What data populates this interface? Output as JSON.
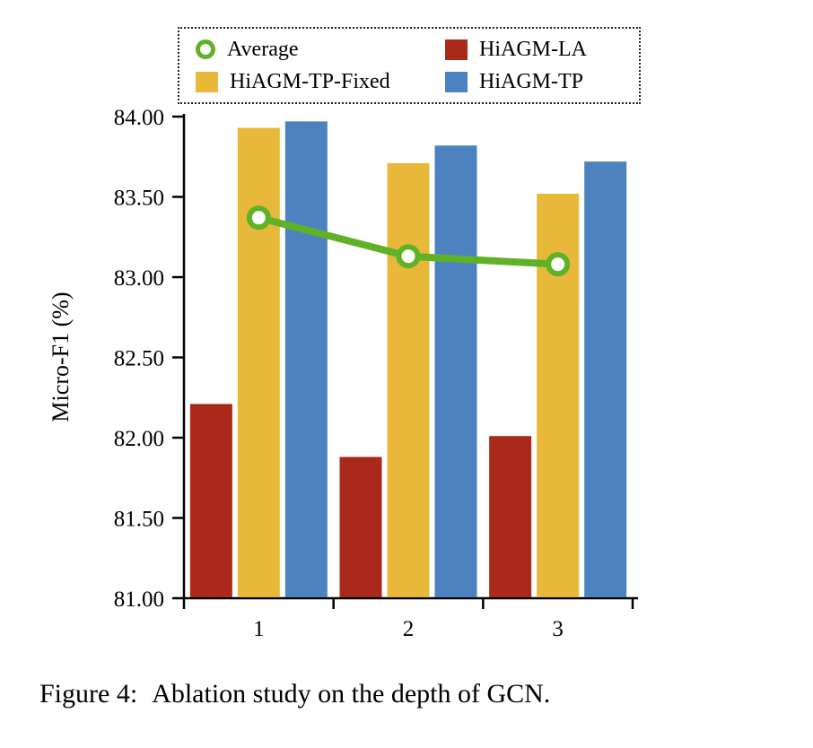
{
  "figure": {
    "caption_label": "Figure 4:",
    "caption_text": "Ablation study on the depth of GCN."
  },
  "chart_data": {
    "type": "bar",
    "title": "",
    "xlabel": "",
    "ylabel": "Micro-F1 (%)",
    "ylim": [
      81.0,
      84.0
    ],
    "ytick_labels": [
      "81.00",
      "81.50",
      "82.00",
      "82.50",
      "83.00",
      "83.50",
      "84.00"
    ],
    "ytick_values": [
      81.0,
      81.5,
      82.0,
      82.5,
      83.0,
      83.5,
      84.0
    ],
    "grid": false,
    "categories": [
      "1",
      "2",
      "3"
    ],
    "series": [
      {
        "name": "HiAGM-LA",
        "type": "bar",
        "color": "#a9291a",
        "values": [
          82.21,
          81.88,
          82.01
        ]
      },
      {
        "name": "HiAGM-TP-Fixed",
        "type": "bar",
        "color": "#e8b83b",
        "values": [
          83.93,
          83.71,
          83.52
        ]
      },
      {
        "name": "HiAGM-TP",
        "type": "bar",
        "color": "#4d82c0",
        "values": [
          83.97,
          83.82,
          83.72
        ]
      }
    ],
    "line_series": {
      "name": "Average",
      "type": "line",
      "color": "#5fb226",
      "values": [
        83.37,
        83.13,
        83.08
      ]
    },
    "legend": {
      "position": "top",
      "entries": [
        {
          "label": "Average",
          "marker": "circle",
          "color": "#5fb226"
        },
        {
          "label": "HiAGM-LA",
          "marker": "square",
          "color": "#a9291a"
        },
        {
          "label": "HiAGM-TP-Fixed",
          "marker": "square",
          "color": "#e8b83b"
        },
        {
          "label": "HiAGM-TP",
          "marker": "square",
          "color": "#4d82c0"
        }
      ]
    }
  }
}
